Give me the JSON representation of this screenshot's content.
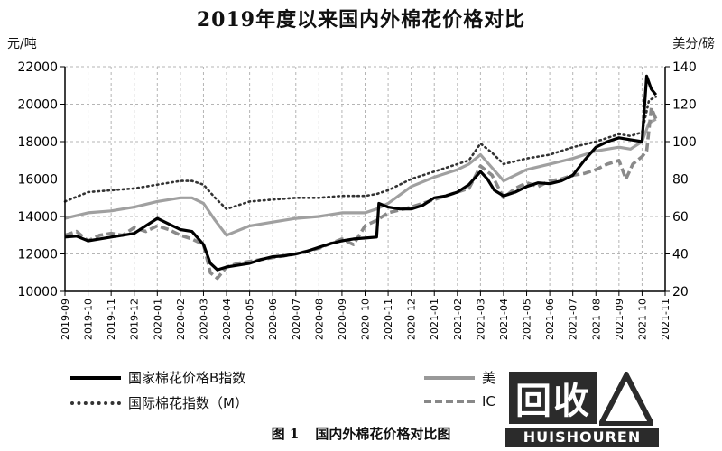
{
  "chart_data": {
    "type": "line",
    "title": "2019年度以来国内外棉花价格对比",
    "caption_number": "图 1",
    "caption_text": "国内外棉花价格对比图",
    "y_left_unit": "元/吨",
    "y_right_unit": "美分/磅",
    "ylim_left": [
      10000,
      22000
    ],
    "ylim_right": [
      20,
      140
    ],
    "yticks_left": [
      "10000",
      "12000",
      "14000",
      "16000",
      "18000",
      "20000",
      "22000"
    ],
    "yticks_right": [
      "20",
      "40",
      "60",
      "80",
      "100",
      "120",
      "140"
    ],
    "categories": [
      "2019-09",
      "2019-10",
      "2019-11",
      "2019-12",
      "2020-01",
      "2020-02",
      "2020-03",
      "2020-04",
      "2020-05",
      "2020-06",
      "2020-07",
      "2020-08",
      "2020-09",
      "2020-10",
      "2020-11",
      "2020-12",
      "2021-01",
      "2021-02",
      "2021-03",
      "2021-04",
      "2021-05",
      "2021-06",
      "2021-07",
      "2021-08",
      "2021-09",
      "2021-10",
      "2021-11"
    ],
    "grid": true,
    "series": [
      {
        "name": "国家棉花价格B指数",
        "axis": "left",
        "style": "solid-black",
        "x": [
          0,
          0.5,
          1,
          1.5,
          2,
          2.5,
          3,
          3.5,
          4,
          4.5,
          5,
          5.5,
          6,
          6.3,
          6.6,
          7,
          7.5,
          8,
          8.5,
          9,
          9.5,
          10,
          10.5,
          11,
          11.5,
          12,
          12.5,
          13,
          13.5,
          13.6,
          14,
          14.5,
          15,
          15.5,
          16,
          16.5,
          17,
          17.5,
          18,
          18.3,
          18.6,
          19,
          19.5,
          20,
          20.5,
          21,
          21.5,
          22,
          22.5,
          23,
          23.5,
          24,
          24.5,
          25,
          25.2,
          25.4,
          25.6
        ],
        "values": [
          12900,
          12950,
          12700,
          12800,
          12900,
          13000,
          13100,
          13500,
          13900,
          13600,
          13300,
          13200,
          12500,
          11500,
          11150,
          11300,
          11400,
          11500,
          11700,
          11850,
          11900,
          12000,
          12150,
          12350,
          12550,
          12700,
          12800,
          12850,
          12900,
          14700,
          14500,
          14400,
          14400,
          14600,
          15000,
          15100,
          15300,
          15700,
          16400,
          16000,
          15400,
          15100,
          15300,
          15600,
          15800,
          15750,
          15900,
          16200,
          17000,
          17700,
          18000,
          18200,
          18100,
          18000,
          21500,
          20800,
          20500
        ]
      },
      {
        "name": "国际棉花指数（M）",
        "axis": "right",
        "style": "dotted-black",
        "x": [
          0,
          1,
          2,
          3,
          4,
          5,
          5.5,
          6,
          6.5,
          7,
          8,
          9,
          10,
          11,
          12,
          13,
          13.5,
          14,
          15,
          16,
          17,
          17.5,
          18,
          18.5,
          19,
          20,
          21,
          22,
          23,
          24,
          24.5,
          25,
          25.3,
          25.6
        ],
        "values": [
          68,
          73,
          74,
          75,
          77,
          79,
          79,
          77,
          70,
          64,
          68,
          69,
          70,
          70,
          71,
          71,
          72,
          74,
          80,
          84,
          88,
          90,
          99,
          94,
          88,
          91,
          93,
          97,
          100,
          104,
          103,
          105,
          122,
          124
        ]
      },
      {
        "name": "美棉期货",
        "axis": "right",
        "style": "solid-gray",
        "x": [
          0,
          1,
          2,
          3,
          4,
          5,
          5.5,
          6,
          6.5,
          7,
          8,
          9,
          10,
          11,
          12,
          13,
          13.5,
          14,
          15,
          16,
          17,
          17.5,
          18,
          18.5,
          19,
          20,
          21,
          22,
          23,
          24,
          24.5,
          25,
          25.3,
          25.6
        ],
        "values": [
          59,
          62,
          63,
          65,
          68,
          70,
          70,
          67,
          58,
          50,
          55,
          57,
          59,
          60,
          62,
          62,
          64,
          67,
          76,
          81,
          85,
          88,
          93,
          86,
          79,
          85,
          88,
          91,
          95,
          97,
          96,
          100,
          110,
          112
        ]
      },
      {
        "name": "ICE 期货合约",
        "axis": "right",
        "style": "dashed-gray",
        "x": [
          0,
          0.5,
          1,
          1.5,
          2,
          2.5,
          3,
          3.5,
          4,
          4.5,
          5,
          5.5,
          6,
          6.3,
          6.6,
          7,
          7.5,
          8,
          9,
          10,
          11,
          12,
          12.5,
          13,
          13.5,
          14,
          15,
          16,
          17,
          17.5,
          18,
          18.5,
          19,
          19.5,
          20,
          20.5,
          21,
          21.5,
          22,
          22.5,
          23,
          23.5,
          24,
          24.3,
          24.6,
          25,
          25.2,
          25.4,
          25.6
        ],
        "values": [
          50,
          52,
          47,
          50,
          51,
          50,
          54,
          52,
          55,
          53,
          50,
          48,
          45,
          30,
          27,
          33,
          35,
          36,
          38,
          40,
          43,
          48,
          45,
          55,
          58,
          62,
          65,
          69,
          73,
          75,
          87,
          82,
          70,
          75,
          78,
          76,
          79,
          80,
          82,
          83,
          85,
          88,
          90,
          80,
          88,
          92,
          95,
          118,
          112
        ]
      }
    ],
    "legend": [
      {
        "label": "国家棉花价格B指数"
      },
      {
        "label": "国际棉花指数（M）"
      },
      {
        "label": "美"
      },
      {
        "label": "IC"
      }
    ]
  },
  "watermark": {
    "box_text": "回收",
    "site_text": "HUISHOUREN"
  }
}
